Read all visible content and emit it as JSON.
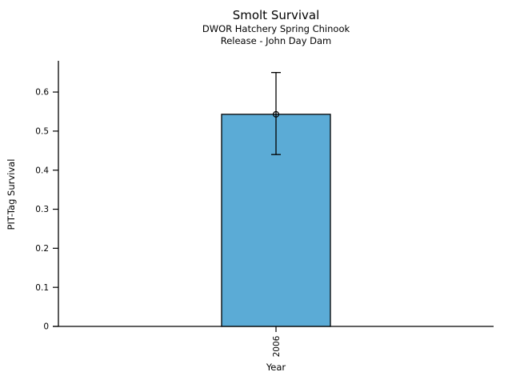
{
  "chart_data": {
    "type": "bar",
    "title": "Smolt Survival",
    "subtitle1": "DWOR Hatchery Spring Chinook",
    "subtitle2": "Release - John Day Dam",
    "xlabel": "Year",
    "ylabel": "PIT-Tag Survival",
    "categories": [
      "2006"
    ],
    "values": [
      0.543
    ],
    "error_low": [
      0.44
    ],
    "error_high": [
      0.65
    ],
    "yticks": [
      0,
      0.1,
      0.2,
      0.3,
      0.4,
      0.5,
      0.6
    ],
    "ytick_labels": [
      "0",
      "0.1",
      "0.2",
      "0.3",
      "0.4",
      "0.5",
      "0.6"
    ],
    "ylim": [
      0,
      0.68
    ],
    "grid": false,
    "legend": "none",
    "xtick_rotation": 90,
    "bar_color": "#5babd6",
    "bar_edge_color": "#000000",
    "axis_color": "#000000",
    "marker": "open-circle"
  }
}
